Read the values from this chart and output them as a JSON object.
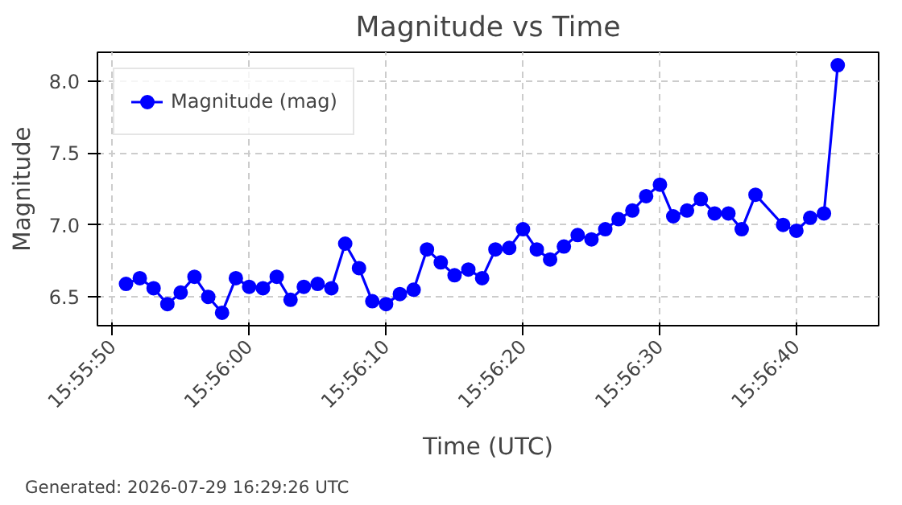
{
  "chart_data": {
    "type": "line",
    "title": "Magnitude vs Time",
    "xlabel": "Time (UTC)",
    "ylabel": "Magnitude",
    "x": [
      15.93083,
      15.93111,
      15.93139,
      15.93167,
      15.93194,
      15.93222,
      15.9325,
      15.93278,
      15.93306,
      15.93333,
      15.93361,
      15.93389,
      15.93417,
      15.93444,
      15.93472,
      15.935,
      15.93528,
      15.93556,
      15.93583,
      15.93611,
      15.93639,
      15.93667,
      15.93694,
      15.93722,
      15.9375,
      15.93778,
      15.93806,
      15.93833,
      15.93861,
      15.93889,
      15.93917,
      15.93944,
      15.93972,
      15.94,
      15.94028,
      15.94056,
      15.94083,
      15.94111,
      15.94139,
      15.94167,
      15.94194,
      15.94222,
      15.9425,
      15.94278,
      15.94306,
      15.94333,
      15.94361,
      15.94417,
      15.94444,
      15.94472,
      15.945,
      15.94528
    ],
    "series": [
      {
        "name": "Magnitude (mag)",
        "color": "#0000ff",
        "values": [
          6.59,
          6.63,
          6.56,
          6.45,
          6.53,
          6.64,
          6.5,
          6.39,
          6.63,
          6.57,
          6.56,
          6.64,
          6.48,
          6.57,
          6.59,
          6.56,
          6.87,
          6.7,
          6.47,
          6.45,
          6.52,
          6.55,
          6.83,
          6.74,
          6.65,
          6.69,
          6.63,
          6.83,
          6.84,
          6.97,
          6.83,
          6.76,
          6.85,
          6.93,
          6.9,
          6.97,
          7.04,
          7.1,
          7.2,
          7.28,
          7.06,
          7.1,
          7.18,
          7.08,
          7.08,
          6.97,
          7.21,
          7.0,
          6.96,
          7.05,
          7.08,
          8.11
        ]
      }
    ],
    "xlim": [
      15.93025,
      15.94611
    ],
    "ylim": [
      6.3,
      8.2
    ],
    "xticks": [
      {
        "value": 15.93056,
        "label": "15:55:50"
      },
      {
        "value": 15.93333,
        "label": "15:56:00"
      },
      {
        "value": 15.93611,
        "label": "15:56:10"
      },
      {
        "value": 15.93889,
        "label": "15:56:20"
      },
      {
        "value": 15.94167,
        "label": "15:56:30"
      },
      {
        "value": 15.94444,
        "label": "15:56:40"
      }
    ],
    "yticks": [
      6.5,
      {
        "value": 7,
        "label": "7.0"
      },
      7.5,
      {
        "value": 8,
        "label": "8.0"
      }
    ],
    "grid": true,
    "legend": "top left",
    "marker": "circle",
    "line_style": "solid",
    "annotations": [
      "Generated: 2026-07-29 16:29:26 UTC"
    ]
  }
}
